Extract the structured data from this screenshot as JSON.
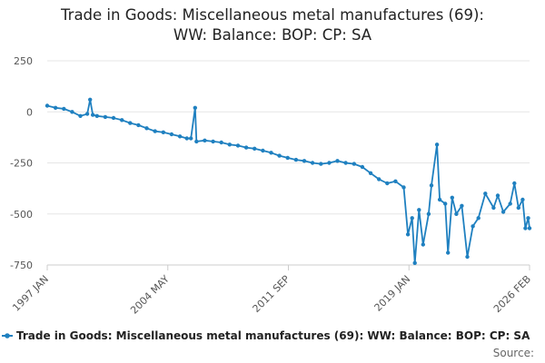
{
  "title_line1": "Trade in Goods: Miscellaneous metal manufactures (69):",
  "title_line2": "WW: Balance: BOP: CP: SA",
  "source_label": "Source:",
  "chart_data": {
    "type": "line",
    "title": "Trade in Goods: Miscellaneous metal manufactures (69): WW: Balance: BOP: CP: SA",
    "xlabel": "",
    "ylabel": "",
    "ylim": [
      -750,
      250
    ],
    "y_ticks": [
      250,
      0,
      -250,
      -500,
      -750
    ],
    "x_tick_labels": [
      "1997 JAN",
      "2004 MAY",
      "2011 SEP",
      "2019 JAN",
      "2026 FEB"
    ],
    "x_range": [
      "1997 JAN",
      "2026 FEB"
    ],
    "grid": true,
    "legend_position": "bottom",
    "series": [
      {
        "name": "Trade in Goods: Miscellaneous metal manufactures (69): WW: Balance: BOP: CP: SA",
        "color": "#1f80c0",
        "points": [
          [
            "1997 JAN",
            30
          ],
          [
            "1997 JUL",
            20
          ],
          [
            "1998 JAN",
            15
          ],
          [
            "1998 JUL",
            0
          ],
          [
            "1999 JAN",
            -20
          ],
          [
            "1999 JUN",
            -10
          ],
          [
            "1999 AUG",
            60
          ],
          [
            "1999 OCT",
            -15
          ],
          [
            "2000 JAN",
            -20
          ],
          [
            "2000 JUL",
            -25
          ],
          [
            "2001 JAN",
            -30
          ],
          [
            "2001 JUL",
            -40
          ],
          [
            "2002 JAN",
            -55
          ],
          [
            "2002 JUL",
            -65
          ],
          [
            "2003 JAN",
            -80
          ],
          [
            "2003 JUL",
            -95
          ],
          [
            "2004 JAN",
            -100
          ],
          [
            "2004 JUL",
            -110
          ],
          [
            "2005 JAN",
            -120
          ],
          [
            "2005 JUN",
            -130
          ],
          [
            "2005 SEP",
            -130
          ],
          [
            "2005 DEC",
            20
          ],
          [
            "2006 JAN",
            -145
          ],
          [
            "2006 JUL",
            -140
          ],
          [
            "2007 JAN",
            -145
          ],
          [
            "2007 JUL",
            -150
          ],
          [
            "2008 JAN",
            -160
          ],
          [
            "2008 JUL",
            -165
          ],
          [
            "2009 JAN",
            -175
          ],
          [
            "2009 JUL",
            -180
          ],
          [
            "2010 JAN",
            -190
          ],
          [
            "2010 JUL",
            -200
          ],
          [
            "2011 JAN",
            -215
          ],
          [
            "2011 JUL",
            -225
          ],
          [
            "2012 JAN",
            -235
          ],
          [
            "2012 JUL",
            -240
          ],
          [
            "2013 JAN",
            -250
          ],
          [
            "2013 JUL",
            -255
          ],
          [
            "2014 JAN",
            -250
          ],
          [
            "2014 JUL",
            -240
          ],
          [
            "2015 JAN",
            -250
          ],
          [
            "2015 JUL",
            -255
          ],
          [
            "2016 JAN",
            -270
          ],
          [
            "2016 JUL",
            -300
          ],
          [
            "2017 JAN",
            -330
          ],
          [
            "2017 JUL",
            -350
          ],
          [
            "2018 JAN",
            -340
          ],
          [
            "2018 JUL",
            -370
          ],
          [
            "2018 OCT",
            -600
          ],
          [
            "2019 JAN",
            -520
          ],
          [
            "2019 MAR",
            -740
          ],
          [
            "2019 JUN",
            -480
          ],
          [
            "2019 SEP",
            -650
          ],
          [
            "2020 JAN",
            -500
          ],
          [
            "2020 MAR",
            -360
          ],
          [
            "2020 JUL",
            -160
          ],
          [
            "2020 SEP",
            -430
          ],
          [
            "2021 JAN",
            -450
          ],
          [
            "2021 MAR",
            -690
          ],
          [
            "2021 JUN",
            -420
          ],
          [
            "2021 SEP",
            -500
          ],
          [
            "2022 JAN",
            -460
          ],
          [
            "2022 MAY",
            -710
          ],
          [
            "2022 SEP",
            -560
          ],
          [
            "2023 JAN",
            -520
          ],
          [
            "2023 JUN",
            -400
          ],
          [
            "2023 DEC",
            -470
          ],
          [
            "2024 MAR",
            -410
          ],
          [
            "2024 JUL",
            -490
          ],
          [
            "2024 DEC",
            -450
          ],
          [
            "2025 MAR",
            -350
          ],
          [
            "2025 JUN",
            -470
          ],
          [
            "2025 SEP",
            -430
          ],
          [
            "2025 NOV",
            -570
          ],
          [
            "2026 JAN",
            -520
          ],
          [
            "2026 FEB",
            -570
          ]
        ]
      }
    ]
  }
}
